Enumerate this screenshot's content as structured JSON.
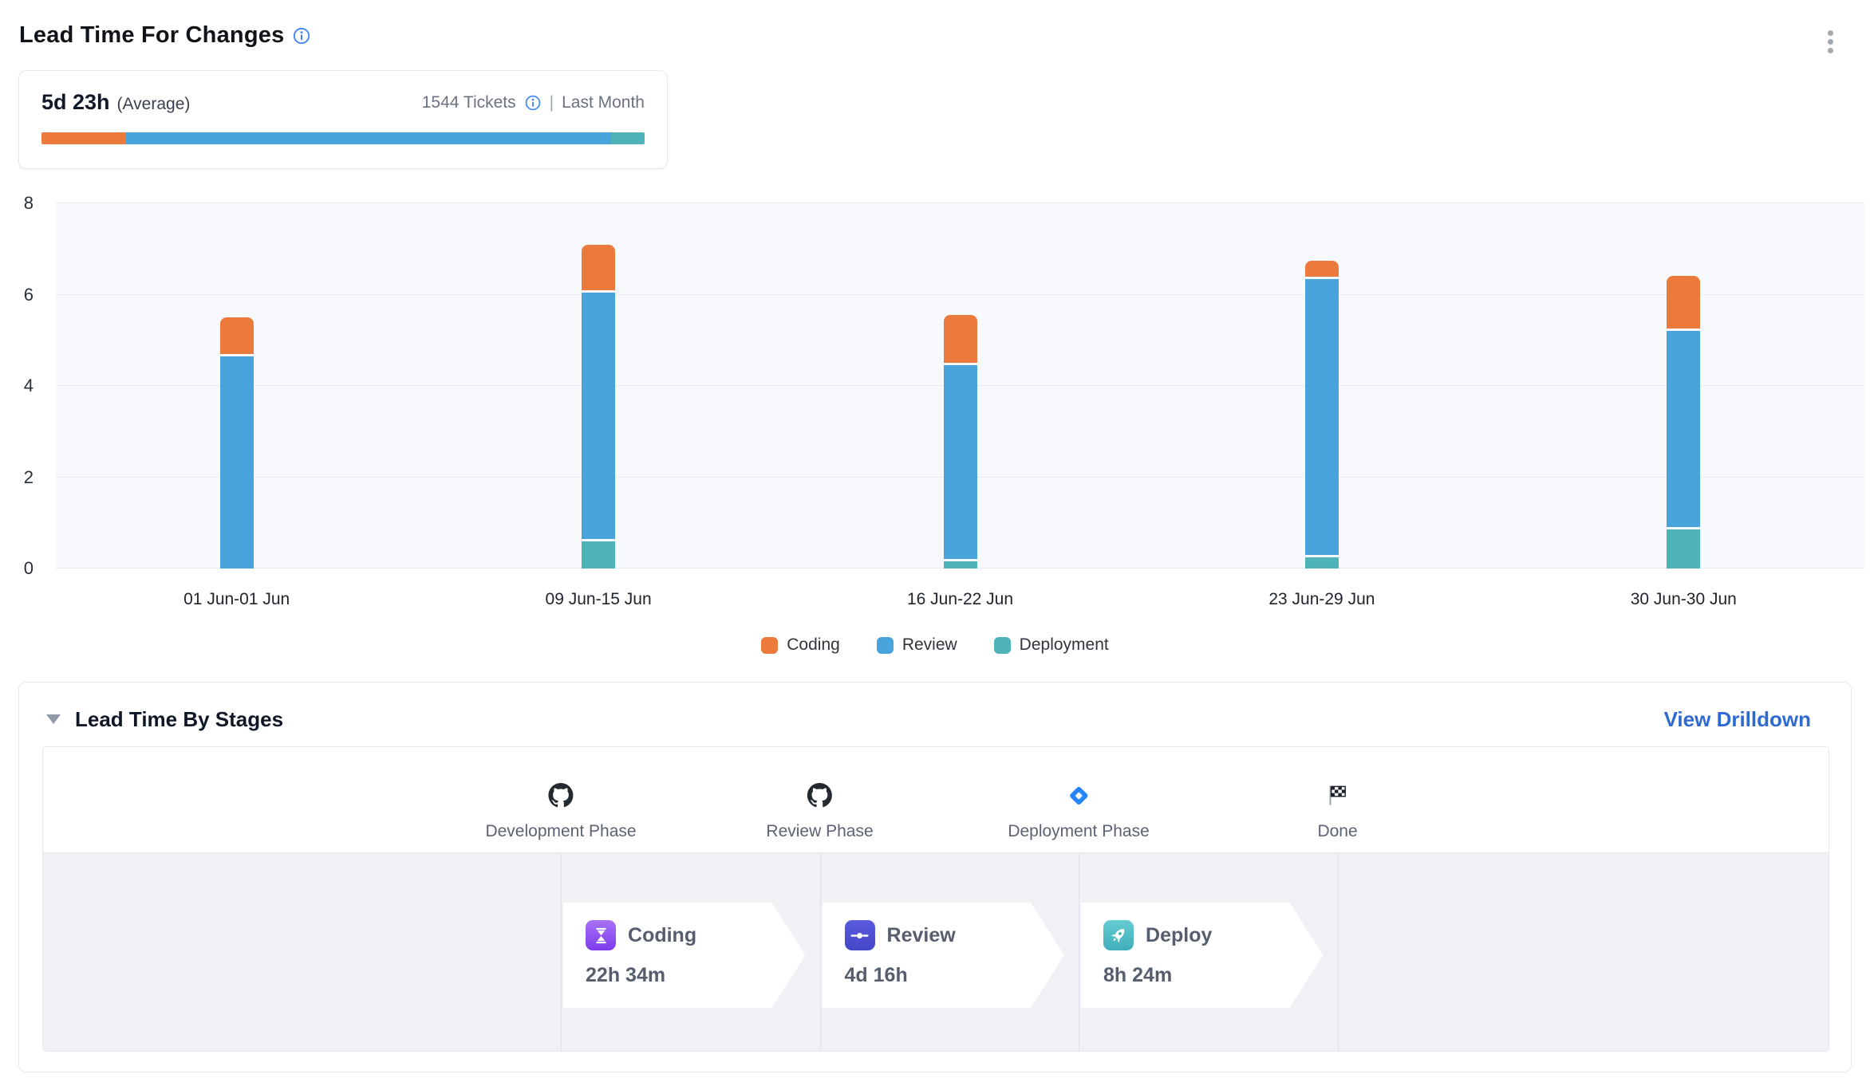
{
  "header": {
    "title": "Lead Time For Changes"
  },
  "summary": {
    "value": "5d 23h",
    "value_suffix": "(Average)",
    "tickets": "1544 Tickets",
    "separator": "|",
    "period": "Last Month",
    "bar_segments": [
      {
        "name": "Coding",
        "color": "#ec7a3c",
        "percent": 14
      },
      {
        "name": "Review",
        "color": "#4aa4dc",
        "percent": 80.5
      },
      {
        "name": "Deployment",
        "color": "#4fb3ba",
        "percent": 5.5
      }
    ]
  },
  "chart_data": {
    "type": "bar",
    "stacked": true,
    "categories": [
      "01 Jun-01 Jun",
      "09 Jun-15 Jun",
      "16 Jun-22 Jun",
      "23 Jun-29 Jun",
      "30 Jun-30 Jun"
    ],
    "series": [
      {
        "name": "Coding",
        "color": "#ec7a3c",
        "values": [
          0.8,
          1.0,
          1.05,
          0.35,
          1.15
        ]
      },
      {
        "name": "Review",
        "color": "#4aa4dc",
        "values": [
          4.65,
          5.4,
          4.25,
          6.05,
          4.3
        ]
      },
      {
        "name": "Deployment",
        "color": "#4fb3ba",
        "values": [
          0,
          0.6,
          0.15,
          0.25,
          0.85
        ]
      }
    ],
    "stack_order_bottom_to_top": [
      "Deployment",
      "Review",
      "Coding"
    ],
    "title": "Lead Time For Changes",
    "xlabel": "",
    "ylabel": "",
    "ylim": [
      0,
      8
    ],
    "yticks": [
      0,
      2,
      4,
      6,
      8
    ],
    "grid": true,
    "legend_position": "bottom"
  },
  "stages_panel": {
    "title": "Lead Time By Stages",
    "drilldown_label": "View Drilldown",
    "phases": [
      {
        "label": "Development Phase",
        "icon": "github-icon"
      },
      {
        "label": "Review Phase",
        "icon": "github-icon"
      },
      {
        "label": "Deployment Phase",
        "icon": "jira-icon"
      },
      {
        "label": "Done",
        "icon": "checkered-flag-icon"
      }
    ],
    "stages": [
      {
        "name": "Coding",
        "duration": "22h 34m",
        "icon": "hourglass-icon",
        "icon_bg_top": "#a873f7",
        "icon_bg_bottom": "#7d3bec"
      },
      {
        "name": "Review",
        "duration": "4d 16h",
        "icon": "commit-icon",
        "icon_bg_top": "#5a5be0",
        "icon_bg_bottom": "#4547c9"
      },
      {
        "name": "Deploy",
        "duration": "8h 24m",
        "icon": "rocket-icon",
        "icon_bg_top": "#66ccd2",
        "icon_bg_bottom": "#3fafba"
      }
    ]
  }
}
